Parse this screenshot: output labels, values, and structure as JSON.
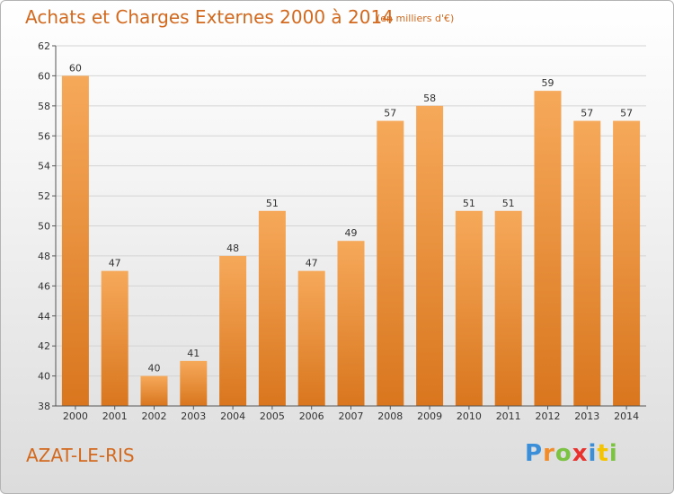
{
  "header": {
    "title": "Achats et Charges Externes 2000 à 2014",
    "subtitle": "(en milliers d'€)"
  },
  "footer": {
    "commune": "AZAT-LE-RIS",
    "logo_letters": [
      "P",
      "r",
      "o",
      "x",
      "i",
      "t",
      "i"
    ],
    "logo_colors": [
      "#3a8fd8",
      "#f28c28",
      "#7cc243",
      "#e8322d",
      "#3a8fd8",
      "#f5c400",
      "#7cc243"
    ]
  },
  "colors": {
    "bar_light": "#f6a95a",
    "bar_dark": "#d9761e",
    "text": "#d2691e",
    "axis": "#555555",
    "grid": "#d4d4d4"
  },
  "chart_data": {
    "type": "bar",
    "title": "Achats et Charges Externes 2000 à 2014",
    "subtitle": "(en milliers d'€)",
    "xlabel": "",
    "ylabel": "",
    "categories": [
      "2000",
      "2001",
      "2002",
      "2003",
      "2004",
      "2005",
      "2006",
      "2007",
      "2008",
      "2009",
      "2010",
      "2011",
      "2012",
      "2013",
      "2014"
    ],
    "values": [
      60,
      47,
      40,
      41,
      48,
      51,
      47,
      49,
      57,
      58,
      51,
      51,
      59,
      57,
      57
    ],
    "ylim": [
      38,
      62
    ],
    "yticks": [
      38,
      40,
      42,
      44,
      46,
      48,
      50,
      52,
      54,
      56,
      58,
      60,
      62
    ],
    "grid": true,
    "data_labels": true
  }
}
